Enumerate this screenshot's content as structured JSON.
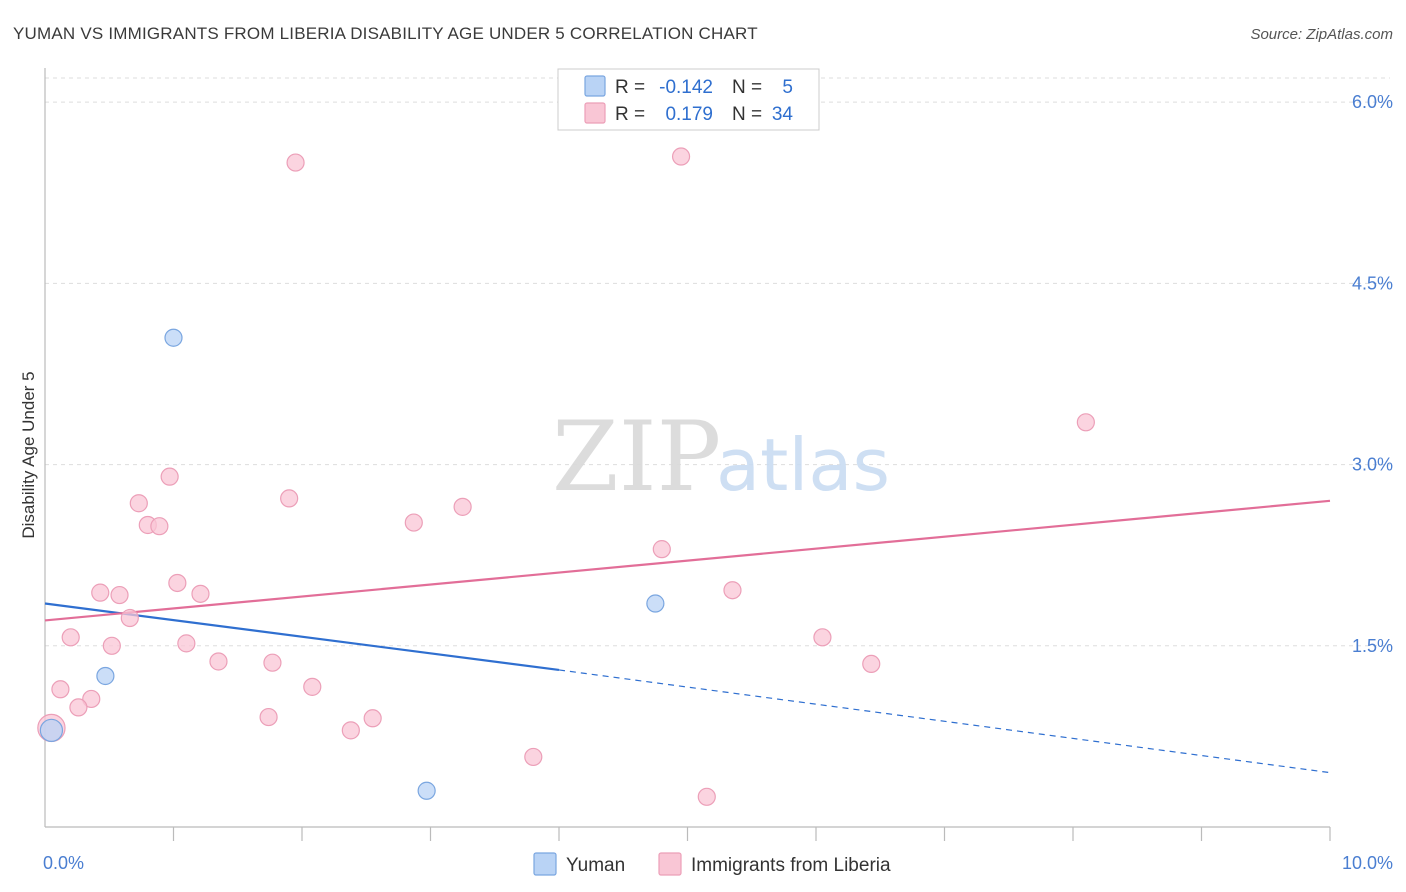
{
  "title": "YUMAN VS IMMIGRANTS FROM LIBERIA DISABILITY AGE UNDER 5 CORRELATION CHART",
  "source": "Source: ZipAtlas.com",
  "watermark": {
    "zip": "ZIP",
    "atlas": "atlas"
  },
  "colors": {
    "blue_fill": "#b9d3f5",
    "blue_stroke": "#7aa6e0",
    "blue_line": "#2f6fd0",
    "pink_fill": "#f9c6d5",
    "pink_stroke": "#ec9fb8",
    "pink_line": "#e26e98",
    "grid": "#dddddd",
    "axis": "#bbbbbb"
  },
  "legend": {
    "rows": [
      {
        "r_label": "R =",
        "r_value": "-0.142",
        "n_label": "N =",
        "n_value": "5",
        "series": "yuman"
      },
      {
        "r_label": "R =",
        "r_value": "0.179",
        "n_label": "N =",
        "n_value": "34",
        "series": "liberia"
      }
    ]
  },
  "bottom_legend": [
    {
      "label": "Yuman",
      "series": "yuman"
    },
    {
      "label": "Immigrants from Liberia",
      "series": "liberia"
    }
  ],
  "chart_data": {
    "type": "scatter",
    "title": "YUMAN VS IMMIGRANTS FROM LIBERIA DISABILITY AGE UNDER 5 CORRELATION CHART",
    "xlabel": "",
    "ylabel": "Disability Age Under 5",
    "xlim": [
      0,
      10
    ],
    "ylim": [
      0,
      6.2
    ],
    "x_ticks": [
      {
        "value": 0,
        "label": "0.0%"
      },
      {
        "value": 10,
        "label": "10.0%"
      }
    ],
    "y_ticks": [
      {
        "value": 1.5,
        "label": "1.5%"
      },
      {
        "value": 3.0,
        "label": "3.0%"
      },
      {
        "value": 4.5,
        "label": "4.5%"
      },
      {
        "value": 6.0,
        "label": "6.0%"
      }
    ],
    "x_minor_ticks": [
      1,
      2,
      3,
      4,
      5,
      6,
      7,
      8,
      9,
      10
    ],
    "series": [
      {
        "name": "Yuman",
        "key": "yuman",
        "points": [
          {
            "x": 1.0,
            "y": 4.05,
            "size": 1
          },
          {
            "x": 4.75,
            "y": 1.85,
            "size": 1
          },
          {
            "x": 0.47,
            "y": 1.25,
            "size": 1
          },
          {
            "x": 0.05,
            "y": 0.8,
            "size": 1.3
          },
          {
            "x": 2.97,
            "y": 0.3,
            "size": 1
          }
        ],
        "trend": {
          "x0": 0,
          "y0": 1.85,
          "x1": 4.0,
          "y1": 1.3,
          "dash_x1": 10.0,
          "dash_y1": 0.45
        }
      },
      {
        "name": "Immigrants from Liberia",
        "key": "liberia",
        "points": [
          {
            "x": 1.95,
            "y": 5.5,
            "size": 1
          },
          {
            "x": 4.95,
            "y": 5.55,
            "size": 1
          },
          {
            "x": 8.1,
            "y": 3.35,
            "size": 1
          },
          {
            "x": 0.97,
            "y": 2.9,
            "size": 1
          },
          {
            "x": 0.73,
            "y": 2.68,
            "size": 1
          },
          {
            "x": 1.9,
            "y": 2.72,
            "size": 1
          },
          {
            "x": 3.25,
            "y": 2.65,
            "size": 1
          },
          {
            "x": 0.8,
            "y": 2.5,
            "size": 1
          },
          {
            "x": 0.89,
            "y": 2.49,
            "size": 1
          },
          {
            "x": 2.87,
            "y": 2.52,
            "size": 1
          },
          {
            "x": 4.8,
            "y": 2.3,
            "size": 1
          },
          {
            "x": 1.03,
            "y": 2.02,
            "size": 1
          },
          {
            "x": 0.43,
            "y": 1.94,
            "size": 1
          },
          {
            "x": 0.58,
            "y": 1.92,
            "size": 1
          },
          {
            "x": 1.21,
            "y": 1.93,
            "size": 1
          },
          {
            "x": 5.35,
            "y": 1.96,
            "size": 1
          },
          {
            "x": 0.66,
            "y": 1.73,
            "size": 1
          },
          {
            "x": 0.2,
            "y": 1.57,
            "size": 1
          },
          {
            "x": 0.52,
            "y": 1.5,
            "size": 1
          },
          {
            "x": 1.1,
            "y": 1.52,
            "size": 1
          },
          {
            "x": 6.05,
            "y": 1.57,
            "size": 1
          },
          {
            "x": 1.35,
            "y": 1.37,
            "size": 1
          },
          {
            "x": 1.77,
            "y": 1.36,
            "size": 1
          },
          {
            "x": 6.43,
            "y": 1.35,
            "size": 1
          },
          {
            "x": 0.12,
            "y": 1.14,
            "size": 1
          },
          {
            "x": 2.08,
            "y": 1.16,
            "size": 1
          },
          {
            "x": 0.36,
            "y": 1.06,
            "size": 1
          },
          {
            "x": 0.26,
            "y": 0.99,
            "size": 1
          },
          {
            "x": 1.74,
            "y": 0.91,
            "size": 1
          },
          {
            "x": 2.55,
            "y": 0.9,
            "size": 1
          },
          {
            "x": 2.38,
            "y": 0.8,
            "size": 1
          },
          {
            "x": 0.05,
            "y": 0.82,
            "size": 1.6
          },
          {
            "x": 3.8,
            "y": 0.58,
            "size": 1
          },
          {
            "x": 5.15,
            "y": 0.25,
            "size": 1
          }
        ],
        "trend": {
          "x0": 0,
          "y0": 1.71,
          "x1": 10.0,
          "y1": 2.7
        }
      }
    ]
  }
}
